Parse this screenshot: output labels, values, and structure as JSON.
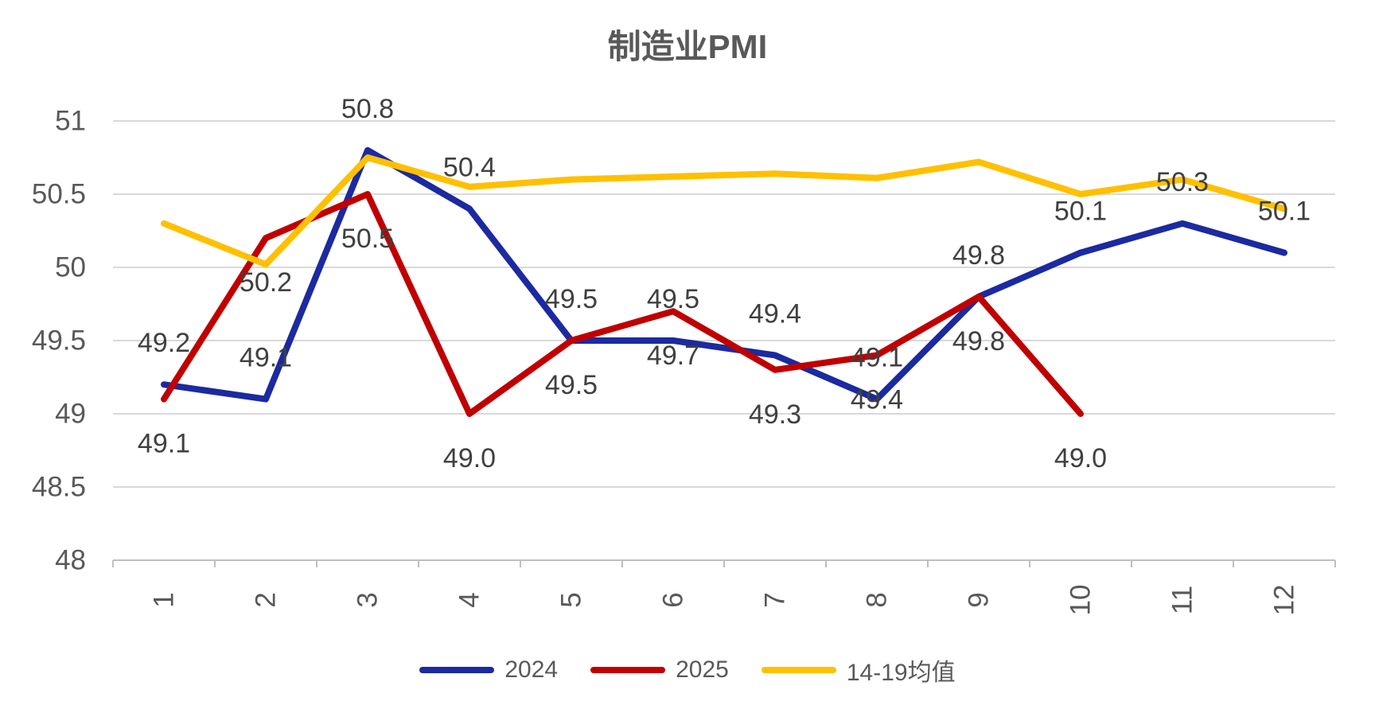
{
  "title": "制造业PMI",
  "colors": {
    "series_2024": "#1B2AA0",
    "series_2025": "#C00000",
    "series_avg": "#FFC000",
    "gridline": "#D9D9D9",
    "axis_line": "#BFBFBF",
    "axis_text": "#595959",
    "data_label_text": "#404040"
  },
  "chart_data": {
    "type": "line",
    "title": "制造业PMI",
    "x": [
      "1",
      "2",
      "3",
      "4",
      "5",
      "6",
      "7",
      "8",
      "9",
      "10",
      "11",
      "12"
    ],
    "xlabel": "",
    "ylabel": "",
    "ylim": [
      48,
      51
    ],
    "ytick_step": 0.5,
    "yticks": [
      "51",
      "50.5",
      "50",
      "49.5",
      "49",
      "48.5",
      "48"
    ],
    "grid": true,
    "legend_position": "bottom",
    "series": [
      {
        "name": "2024",
        "color": "#1B2AA0",
        "values": [
          49.2,
          49.1,
          50.8,
          50.4,
          49.5,
          49.5,
          49.4,
          49.1,
          49.8,
          50.1,
          50.3,
          50.1
        ],
        "labels_position": "above"
      },
      {
        "name": "2025",
        "color": "#C00000",
        "values": [
          49.1,
          50.2,
          50.5,
          49.0,
          49.5,
          49.7,
          49.3,
          49.4,
          49.8,
          49.0
        ],
        "labels_position": "below"
      },
      {
        "name": "14-19均值",
        "color": "#FFC000",
        "values": [
          50.3,
          50.02,
          50.75,
          50.55,
          50.6,
          50.62,
          50.64,
          50.61,
          50.72,
          50.5,
          50.6,
          50.4
        ],
        "labels_position": "none"
      }
    ]
  },
  "legend": {
    "items": [
      {
        "label": "2024"
      },
      {
        "label": "2025"
      },
      {
        "label": "14-19均值"
      }
    ]
  }
}
